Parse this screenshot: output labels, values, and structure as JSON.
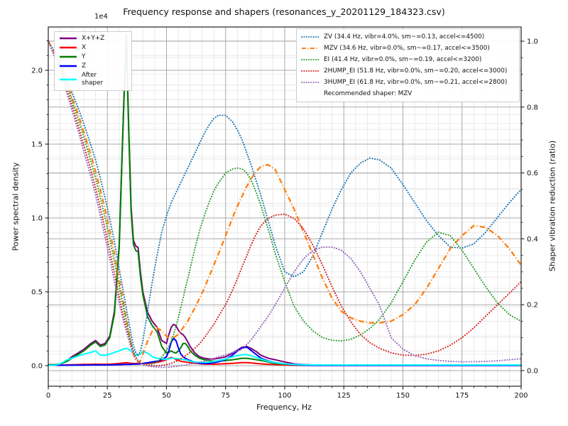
{
  "title": "Frequency response and shapers (resonances_y_20201129_184323.csv)",
  "offset_label": "1e4",
  "axes": {
    "x_label": "Frequency, Hz",
    "y_left_label": "Power spectral density",
    "y_right_label": "Shaper vibration reduction (ratio)",
    "x_ticks": [
      0,
      25,
      50,
      75,
      100,
      125,
      150,
      175,
      200
    ],
    "x_minor_step": 5,
    "y_left_ticks": [
      "0.0",
      "0.5",
      "1.0",
      "1.5",
      "2.0"
    ],
    "y_left_tick_values": [
      0.0,
      0.5,
      1.0,
      1.5,
      2.0
    ],
    "y_right_ticks": [
      "0.0",
      "0.2",
      "0.4",
      "0.6",
      "0.8",
      "1.0"
    ],
    "y_right_tick_values": [
      0.0,
      0.2,
      0.4,
      0.6,
      0.8,
      1.0
    ],
    "grid": "major+minor"
  },
  "legend_left": {
    "items": [
      {
        "label": "X+Y+Z",
        "color": "#800080",
        "style": "solid"
      },
      {
        "label": "X",
        "color": "#ff0000",
        "style": "solid"
      },
      {
        "label": "Y",
        "color": "#008000",
        "style": "solid"
      },
      {
        "label": "Z",
        "color": "#0000ff",
        "style": "solid"
      },
      {
        "label": "After\nshaper",
        "color": "#00ffff",
        "style": "solid"
      }
    ]
  },
  "legend_right": {
    "items": [
      {
        "label": "ZV (34.4 Hz, vibr=4.0%, sm~=0.13, accel<=4500)",
        "color": "#1f77b4",
        "style": "dotted"
      },
      {
        "label": "MZV (34.6 Hz, vibr=0.0%, sm~=0.17, accel<=3500)",
        "color": "#ff7f0e",
        "style": "dashdot"
      },
      {
        "label": "EI (41.4 Hz, vibr=0.0%, sm~=0.19, accel<=3200)",
        "color": "#2ca02c",
        "style": "dotted"
      },
      {
        "label": "2HUMP_EI (51.8 Hz, vibr=0.0%, sm~=0.20, accel<=3000)",
        "color": "#d62728",
        "style": "dotted"
      },
      {
        "label": "3HUMP_EI (61.8 Hz, vibr=0.0%, sm~=0.21, accel<=2800)",
        "color": "#9467bd",
        "style": "dotted"
      }
    ],
    "note": "Recommended shaper: MZV"
  },
  "chart_data": {
    "type": "line",
    "x_range": [
      0,
      200
    ],
    "y_left_range": [
      -0.13,
      2.29
    ],
    "y_left_multiplier": "1e4",
    "y_right_range": [
      -0.045,
      1.043
    ],
    "x": [
      0,
      3,
      5,
      8,
      10,
      13,
      15,
      18,
      20,
      22,
      24,
      26,
      28,
      30,
      31,
      32,
      33,
      34,
      35,
      36,
      37,
      38,
      39,
      40,
      42,
      44,
      46,
      48,
      50,
      51,
      52,
      53,
      54,
      55,
      56,
      57,
      58,
      59,
      60,
      62,
      64,
      66,
      68,
      70,
      72,
      75,
      78,
      80,
      82,
      84,
      86,
      88,
      90,
      93,
      96,
      100,
      104,
      108,
      112,
      116,
      120,
      124,
      128,
      132,
      136,
      140,
      145,
      150,
      155,
      160,
      165,
      170,
      175,
      180,
      185,
      190,
      195,
      200
    ],
    "psd_series": [
      {
        "name": "X+Y+Z",
        "color": "#800080",
        "values": [
          0.006,
          0.007,
          0.012,
          0.035,
          0.06,
          0.09,
          0.11,
          0.15,
          0.17,
          0.14,
          0.15,
          0.2,
          0.37,
          0.82,
          1.32,
          1.82,
          2.24,
          1.63,
          1.08,
          0.85,
          0.81,
          0.8,
          0.63,
          0.5,
          0.36,
          0.3,
          0.26,
          0.17,
          0.15,
          0.21,
          0.26,
          0.28,
          0.27,
          0.24,
          0.22,
          0.21,
          0.19,
          0.16,
          0.13,
          0.085,
          0.06,
          0.05,
          0.045,
          0.045,
          0.05,
          0.06,
          0.085,
          0.105,
          0.125,
          0.13,
          0.115,
          0.095,
          0.07,
          0.05,
          0.04,
          0.025,
          0.012,
          0.007,
          0.005,
          0.004,
          0.004,
          0.004,
          0.004,
          0.004,
          0.004,
          0.004,
          0.004,
          0.004,
          0.004,
          0.004,
          0.004,
          0.004,
          0.004,
          0.004,
          0.004,
          0.004,
          0.004,
          0.004
        ]
      },
      {
        "name": "X",
        "color": "#ff0000",
        "values": [
          0.003,
          0.003,
          0.004,
          0.005,
          0.006,
          0.007,
          0.008,
          0.009,
          0.01,
          0.009,
          0.009,
          0.01,
          0.012,
          0.015,
          0.017,
          0.018,
          0.02,
          0.018,
          0.016,
          0.015,
          0.014,
          0.014,
          0.014,
          0.015,
          0.016,
          0.018,
          0.022,
          0.03,
          0.04,
          0.05,
          0.055,
          0.05,
          0.042,
          0.036,
          0.03,
          0.027,
          0.025,
          0.022,
          0.02,
          0.016,
          0.013,
          0.011,
          0.01,
          0.01,
          0.011,
          0.013,
          0.016,
          0.018,
          0.02,
          0.02,
          0.018,
          0.015,
          0.012,
          0.009,
          0.007,
          0.005,
          0.003,
          0.002,
          0.002,
          0.002,
          0.002,
          0.002,
          0.002,
          0.002,
          0.002,
          0.002,
          0.002,
          0.002,
          0.002,
          0.002,
          0.002,
          0.002,
          0.002,
          0.002,
          0.002,
          0.002,
          0.002,
          0.002
        ]
      },
      {
        "name": "Y",
        "color": "#008000",
        "values": [
          0.005,
          0.006,
          0.01,
          0.03,
          0.05,
          0.08,
          0.1,
          0.14,
          0.16,
          0.13,
          0.14,
          0.19,
          0.35,
          0.8,
          1.3,
          1.8,
          2.2,
          1.6,
          1.05,
          0.82,
          0.78,
          0.77,
          0.6,
          0.48,
          0.33,
          0.27,
          0.23,
          0.13,
          0.085,
          0.09,
          0.1,
          0.09,
          0.085,
          0.1,
          0.12,
          0.15,
          0.15,
          0.13,
          0.1,
          0.07,
          0.05,
          0.04,
          0.035,
          0.03,
          0.03,
          0.035,
          0.04,
          0.045,
          0.05,
          0.05,
          0.045,
          0.04,
          0.035,
          0.025,
          0.015,
          0.01,
          0.006,
          0.004,
          0.003,
          0.003,
          0.003,
          0.003,
          0.003,
          0.003,
          0.003,
          0.003,
          0.003,
          0.003,
          0.003,
          0.003,
          0.003,
          0.003,
          0.003,
          0.003,
          0.003,
          0.003,
          0.003,
          0.003
        ]
      },
      {
        "name": "Z",
        "color": "#0000ff",
        "values": [
          0.003,
          0.003,
          0.003,
          0.003,
          0.004,
          0.004,
          0.004,
          0.005,
          0.005,
          0.005,
          0.005,
          0.005,
          0.006,
          0.007,
          0.007,
          0.008,
          0.008,
          0.008,
          0.009,
          0.01,
          0.01,
          0.011,
          0.012,
          0.015,
          0.02,
          0.025,
          0.03,
          0.04,
          0.06,
          0.1,
          0.16,
          0.185,
          0.17,
          0.12,
          0.08,
          0.06,
          0.05,
          0.04,
          0.035,
          0.022,
          0.016,
          0.014,
          0.015,
          0.02,
          0.026,
          0.042,
          0.072,
          0.1,
          0.12,
          0.125,
          0.1,
          0.075,
          0.05,
          0.032,
          0.02,
          0.012,
          0.006,
          0.003,
          0.002,
          0.002,
          0.002,
          0.002,
          0.002,
          0.002,
          0.002,
          0.002,
          0.002,
          0.002,
          0.002,
          0.002,
          0.002,
          0.002,
          0.002,
          0.002,
          0.002,
          0.002,
          0.002,
          0.002
        ]
      },
      {
        "name": "After shaper",
        "color": "#00ffff",
        "values": [
          0.002,
          0.004,
          0.012,
          0.04,
          0.05,
          0.068,
          0.078,
          0.09,
          0.1,
          0.072,
          0.07,
          0.078,
          0.09,
          0.1,
          0.108,
          0.113,
          0.118,
          0.11,
          0.1,
          0.082,
          0.072,
          0.07,
          0.08,
          0.098,
          0.085,
          0.06,
          0.05,
          0.046,
          0.042,
          0.046,
          0.05,
          0.05,
          0.048,
          0.046,
          0.044,
          0.042,
          0.04,
          0.035,
          0.03,
          0.025,
          0.022,
          0.022,
          0.024,
          0.028,
          0.034,
          0.045,
          0.06,
          0.068,
          0.074,
          0.075,
          0.066,
          0.055,
          0.044,
          0.03,
          0.02,
          0.012,
          0.008,
          0.006,
          0.005,
          0.005,
          0.005,
          0.005,
          0.005,
          0.005,
          0.005,
          0.005,
          0.005,
          0.005,
          0.005,
          0.005,
          0.005,
          0.005,
          0.005,
          0.005,
          0.005,
          0.005,
          0.005,
          0.005
        ]
      }
    ],
    "shaper_series": [
      {
        "name": "ZV",
        "color": "#1f77b4",
        "dash": "dotted",
        "values": [
          1.0,
          0.965,
          0.94,
          0.885,
          0.845,
          0.79,
          0.75,
          0.685,
          0.64,
          0.585,
          0.525,
          0.46,
          0.39,
          0.31,
          0.27,
          0.23,
          0.19,
          0.15,
          0.11,
          0.075,
          0.055,
          0.045,
          0.06,
          0.09,
          0.18,
          0.27,
          0.35,
          0.42,
          0.47,
          0.49,
          0.51,
          0.525,
          0.54,
          0.555,
          0.57,
          0.585,
          0.6,
          0.615,
          0.63,
          0.66,
          0.69,
          0.72,
          0.745,
          0.765,
          0.775,
          0.775,
          0.755,
          0.73,
          0.7,
          0.66,
          0.62,
          0.575,
          0.53,
          0.455,
          0.38,
          0.3,
          0.285,
          0.3,
          0.35,
          0.42,
          0.49,
          0.55,
          0.6,
          0.63,
          0.645,
          0.64,
          0.615,
          0.565,
          0.51,
          0.455,
          0.41,
          0.375,
          0.372,
          0.385,
          0.42,
          0.465,
          0.51,
          0.55
        ]
      },
      {
        "name": "MZV",
        "color": "#ff7f0e",
        "dash": "dashdot",
        "values": [
          1.0,
          0.96,
          0.93,
          0.875,
          0.83,
          0.77,
          0.725,
          0.655,
          0.605,
          0.55,
          0.49,
          0.425,
          0.355,
          0.28,
          0.24,
          0.2,
          0.16,
          0.12,
          0.08,
          0.05,
          0.03,
          0.025,
          0.03,
          0.05,
          0.09,
          0.12,
          0.13,
          0.12,
          0.105,
          0.1,
          0.1,
          0.1,
          0.105,
          0.11,
          0.12,
          0.13,
          0.14,
          0.15,
          0.165,
          0.19,
          0.22,
          0.25,
          0.285,
          0.32,
          0.355,
          0.41,
          0.465,
          0.5,
          0.53,
          0.56,
          0.585,
          0.605,
          0.62,
          0.625,
          0.61,
          0.55,
          0.49,
          0.42,
          0.35,
          0.28,
          0.22,
          0.18,
          0.16,
          0.15,
          0.145,
          0.145,
          0.15,
          0.17,
          0.2,
          0.25,
          0.31,
          0.37,
          0.41,
          0.44,
          0.435,
          0.41,
          0.37,
          0.32
        ]
      },
      {
        "name": "EI",
        "color": "#2ca02c",
        "dash": "dotted",
        "values": [
          1.0,
          0.955,
          0.925,
          0.865,
          0.82,
          0.755,
          0.71,
          0.635,
          0.585,
          0.525,
          0.465,
          0.4,
          0.33,
          0.255,
          0.22,
          0.185,
          0.15,
          0.115,
          0.085,
          0.06,
          0.042,
          0.03,
          0.024,
          0.02,
          0.018,
          0.02,
          0.026,
          0.04,
          0.06,
          0.075,
          0.09,
          0.11,
          0.135,
          0.16,
          0.19,
          0.22,
          0.25,
          0.28,
          0.31,
          0.37,
          0.425,
          0.47,
          0.51,
          0.545,
          0.57,
          0.6,
          0.612,
          0.615,
          0.612,
          0.6,
          0.575,
          0.54,
          0.5,
          0.43,
          0.355,
          0.27,
          0.195,
          0.15,
          0.12,
          0.1,
          0.092,
          0.09,
          0.095,
          0.108,
          0.128,
          0.155,
          0.205,
          0.27,
          0.335,
          0.39,
          0.42,
          0.41,
          0.365,
          0.31,
          0.255,
          0.205,
          0.17,
          0.15
        ]
      },
      {
        "name": "2HUMP_EI",
        "color": "#d62728",
        "dash": "dotted",
        "values": [
          1.0,
          0.95,
          0.915,
          0.85,
          0.805,
          0.735,
          0.685,
          0.61,
          0.555,
          0.495,
          0.43,
          0.365,
          0.295,
          0.225,
          0.19,
          0.16,
          0.13,
          0.1,
          0.075,
          0.055,
          0.04,
          0.03,
          0.025,
          0.02,
          0.016,
          0.015,
          0.015,
          0.016,
          0.018,
          0.02,
          0.022,
          0.025,
          0.028,
          0.032,
          0.036,
          0.04,
          0.045,
          0.05,
          0.056,
          0.068,
          0.082,
          0.1,
          0.12,
          0.14,
          0.165,
          0.2,
          0.245,
          0.28,
          0.315,
          0.35,
          0.385,
          0.415,
          0.44,
          0.462,
          0.472,
          0.475,
          0.462,
          0.43,
          0.38,
          0.32,
          0.255,
          0.195,
          0.148,
          0.11,
          0.085,
          0.068,
          0.054,
          0.047,
          0.046,
          0.05,
          0.06,
          0.077,
          0.1,
          0.13,
          0.165,
          0.2,
          0.235,
          0.27
        ]
      },
      {
        "name": "3HUMP_EI",
        "color": "#9467bd",
        "dash": "dotted",
        "values": [
          1.0,
          0.945,
          0.91,
          0.84,
          0.79,
          0.72,
          0.665,
          0.59,
          0.535,
          0.47,
          0.405,
          0.34,
          0.27,
          0.205,
          0.175,
          0.145,
          0.12,
          0.095,
          0.07,
          0.052,
          0.038,
          0.028,
          0.022,
          0.018,
          0.014,
          0.012,
          0.011,
          0.01,
          0.01,
          0.01,
          0.011,
          0.012,
          0.013,
          0.014,
          0.015,
          0.016,
          0.017,
          0.018,
          0.02,
          0.022,
          0.025,
          0.028,
          0.032,
          0.037,
          0.042,
          0.048,
          0.055,
          0.06,
          0.065,
          0.08,
          0.095,
          0.115,
          0.135,
          0.165,
          0.2,
          0.25,
          0.3,
          0.34,
          0.365,
          0.375,
          0.375,
          0.365,
          0.34,
          0.3,
          0.25,
          0.2,
          0.1,
          0.065,
          0.045,
          0.036,
          0.031,
          0.028,
          0.027,
          0.027,
          0.028,
          0.03,
          0.033,
          0.036
        ]
      }
    ]
  }
}
